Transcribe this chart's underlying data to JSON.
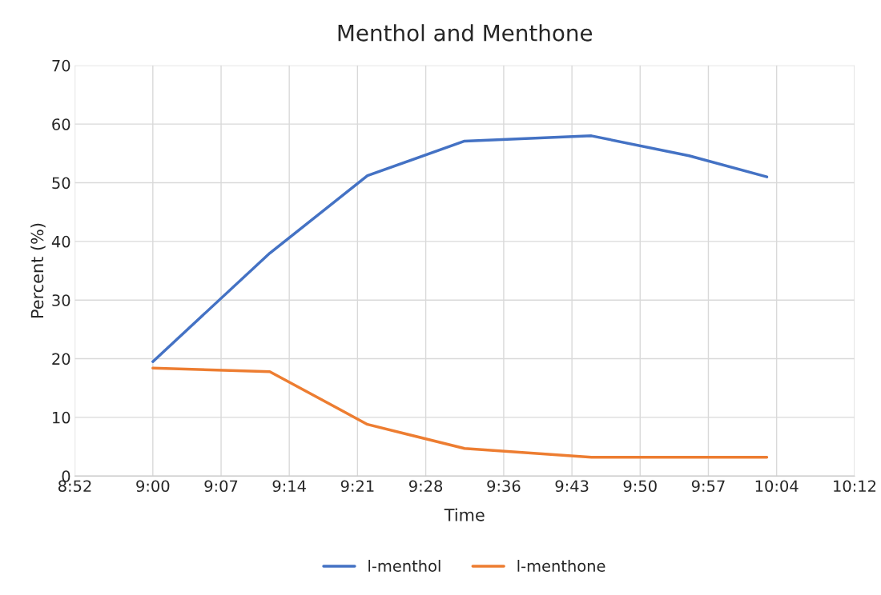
{
  "chart_data": {
    "type": "line",
    "title": "Menthol and Menthone",
    "xlabel": "Time",
    "ylabel": "Percent (%)",
    "x": [
      9.0,
      9.2,
      9.367,
      9.533,
      9.75,
      9.917,
      10.05
    ],
    "series": [
      {
        "name": "l-menthol",
        "color": "#4472c4",
        "values": [
          19.5,
          38,
          51.2,
          57.1,
          58,
          54.6,
          51
        ]
      },
      {
        "name": "l-menthone",
        "color": "#ed7d31",
        "values": [
          18.4,
          17.8,
          8.8,
          4.7,
          3.2,
          3.2,
          3.2
        ]
      }
    ],
    "xlim": [
      8.8667,
      10.2
    ],
    "xticks": [
      {
        "value": 8.8667,
        "label": "8:52"
      },
      {
        "value": 9.0,
        "label": "9:00"
      },
      {
        "value": 9.1167,
        "label": "9:07"
      },
      {
        "value": 9.2333,
        "label": "9:14"
      },
      {
        "value": 9.35,
        "label": "9:21"
      },
      {
        "value": 9.4667,
        "label": "9:28"
      },
      {
        "value": 9.6,
        "label": "9:36"
      },
      {
        "value": 9.7167,
        "label": "9:43"
      },
      {
        "value": 9.8333,
        "label": "9:50"
      },
      {
        "value": 9.95,
        "label": "9:57"
      },
      {
        "value": 10.0667,
        "label": "10:04"
      },
      {
        "value": 10.2,
        "label": "10:12"
      }
    ],
    "ylim": [
      0,
      70
    ],
    "yticks": [
      0,
      10,
      20,
      30,
      40,
      50,
      60,
      70
    ],
    "grid": true,
    "legend": "bottom",
    "marker": "none",
    "line_style": "solid"
  }
}
